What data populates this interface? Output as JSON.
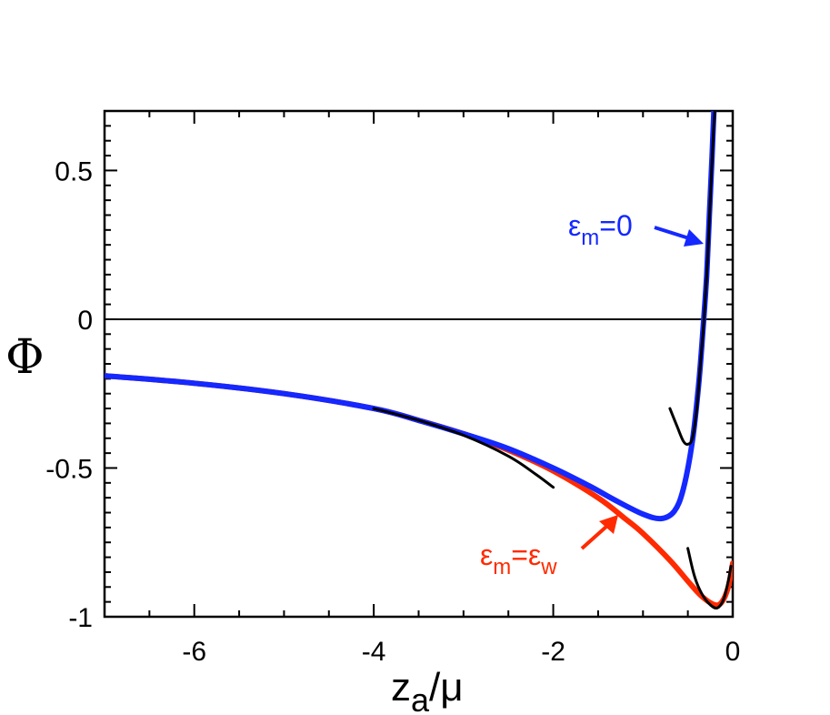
{
  "chart_data": {
    "type": "line",
    "xlabel": {
      "main": "z",
      "sub": "a",
      "rest": "/μ"
    },
    "ylabel": "Φ",
    "xlim": [
      -7,
      0
    ],
    "ylim": [
      -1,
      0.7
    ],
    "x_ticks": [
      {
        "value": -6,
        "label": "-6"
      },
      {
        "value": -4,
        "label": "-4"
      },
      {
        "value": -2,
        "label": "-2"
      },
      {
        "value": 0,
        "label": "0"
      }
    ],
    "y_ticks": [
      {
        "value": 0.5,
        "label": "0.5"
      },
      {
        "value": 0,
        "label": "0"
      },
      {
        "value": -0.5,
        "label": "-0.5"
      },
      {
        "value": -1,
        "label": "-1"
      }
    ],
    "reference_line_y": 0,
    "series": [
      {
        "color": "#ff2a00",
        "points": [
          [
            -7,
            -0.19
          ],
          [
            -6,
            -0.215
          ],
          [
            -5,
            -0.25
          ],
          [
            -4,
            -0.3
          ],
          [
            -3.5,
            -0.34
          ],
          [
            -3,
            -0.385
          ],
          [
            -2.5,
            -0.44
          ],
          [
            -2,
            -0.51
          ],
          [
            -1.5,
            -0.6
          ],
          [
            -1.2,
            -0.67
          ],
          [
            -1,
            -0.72
          ],
          [
            -0.7,
            -0.81
          ],
          [
            -0.5,
            -0.88
          ],
          [
            -0.35,
            -0.93
          ],
          [
            -0.2,
            -0.96
          ],
          [
            -0.12,
            -0.95
          ],
          [
            -0.05,
            -0.9
          ],
          [
            0,
            -0.82
          ]
        ]
      },
      {
        "color": "#1428ff",
        "points": [
          [
            -7,
            -0.19
          ],
          [
            -6,
            -0.215
          ],
          [
            -5,
            -0.25
          ],
          [
            -4,
            -0.3
          ],
          [
            -3.5,
            -0.34
          ],
          [
            -3,
            -0.385
          ],
          [
            -2.5,
            -0.435
          ],
          [
            -2,
            -0.5
          ],
          [
            -1.6,
            -0.56
          ],
          [
            -1.3,
            -0.61
          ],
          [
            -1,
            -0.655
          ],
          [
            -0.8,
            -0.67
          ],
          [
            -0.65,
            -0.645
          ],
          [
            -0.55,
            -0.57
          ],
          [
            -0.45,
            -0.41
          ],
          [
            -0.38,
            -0.22
          ],
          [
            -0.33,
            -0.03
          ],
          [
            -0.29,
            0.15
          ],
          [
            -0.26,
            0.35
          ],
          [
            -0.23,
            0.55
          ],
          [
            -0.21,
            0.7
          ]
        ]
      },
      {
        "color": "#000000",
        "points": [
          [
            -4,
            -0.3
          ],
          [
            -3.5,
            -0.34
          ],
          [
            -3,
            -0.39
          ],
          [
            -2.5,
            -0.46
          ],
          [
            -2.2,
            -0.52
          ],
          [
            -2,
            -0.565
          ]
        ]
      },
      {
        "color": "#000000",
        "points": [
          [
            -0.7,
            -0.3
          ],
          [
            -0.62,
            -0.36
          ],
          [
            -0.55,
            -0.41
          ],
          [
            -0.5,
            -0.42
          ],
          [
            -0.45,
            -0.4
          ],
          [
            -0.4,
            -0.3
          ],
          [
            -0.36,
            -0.15
          ],
          [
            -0.32,
            0.0
          ],
          [
            -0.28,
            0.2
          ],
          [
            -0.25,
            0.4
          ],
          [
            -0.22,
            0.6
          ],
          [
            -0.2,
            0.7
          ]
        ]
      },
      {
        "color": "#000000",
        "points": [
          [
            -0.5,
            -0.77
          ],
          [
            -0.43,
            -0.86
          ],
          [
            -0.35,
            -0.92
          ],
          [
            -0.25,
            -0.96
          ],
          [
            -0.17,
            -0.97
          ],
          [
            -0.1,
            -0.94
          ],
          [
            -0.05,
            -0.88
          ],
          [
            -0.02,
            -0.83
          ]
        ]
      }
    ],
    "annotations": [
      {
        "name": "eps-m-0",
        "color": "#1428ff",
        "base": "ε",
        "sub": "m",
        "suffix": "=0",
        "arrow_to": [
          -0.32,
          0.25
        ]
      },
      {
        "name": "eps-m-eps-w",
        "color": "#ff2a00",
        "base": "ε",
        "sub": "m",
        "mid": "=ε",
        "sub2": "w",
        "arrow_to": [
          -1.27,
          -0.65
        ]
      }
    ]
  }
}
